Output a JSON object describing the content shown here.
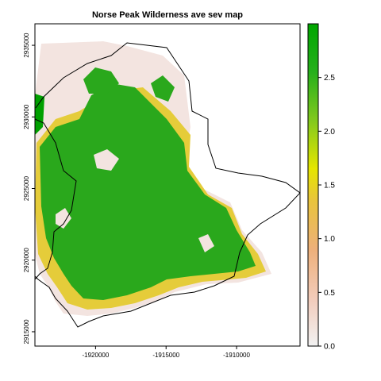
{
  "title": "Norse Peak Wilderness ave sev map",
  "x_axis": {
    "ticks": [
      {
        "value": -1920000,
        "label": "-1920000"
      },
      {
        "value": -1915000,
        "label": "-1915000"
      },
      {
        "value": -1910000,
        "label": "-1910000"
      }
    ],
    "range": [
      -1924300,
      -1905500
    ]
  },
  "y_axis": {
    "ticks": [
      {
        "value": 2915000,
        "label": "2915000"
      },
      {
        "value": 2920000,
        "label": "2920000"
      },
      {
        "value": 2925000,
        "label": "2925000"
      },
      {
        "value": 2930000,
        "label": "2930000"
      },
      {
        "value": 2935000,
        "label": "2935000"
      }
    ],
    "range": [
      2914000,
      2936500
    ]
  },
  "legend": {
    "min": 0.0,
    "max": 3.0,
    "ticks": [
      {
        "value": 0.0,
        "label": "0.0"
      },
      {
        "value": 0.5,
        "label": "0.5"
      },
      {
        "value": 1.0,
        "label": "1.0"
      },
      {
        "value": 1.5,
        "label": "1.5"
      },
      {
        "value": 2.0,
        "label": "2.0"
      },
      {
        "value": 2.5,
        "label": "2.5"
      }
    ],
    "colors": [
      "#f2f2f2",
      "#f2cdbd",
      "#eeb07a",
      "#e9c43d",
      "#e6e600",
      "#82c91e",
      "#26b01c",
      "#00a600"
    ]
  }
}
